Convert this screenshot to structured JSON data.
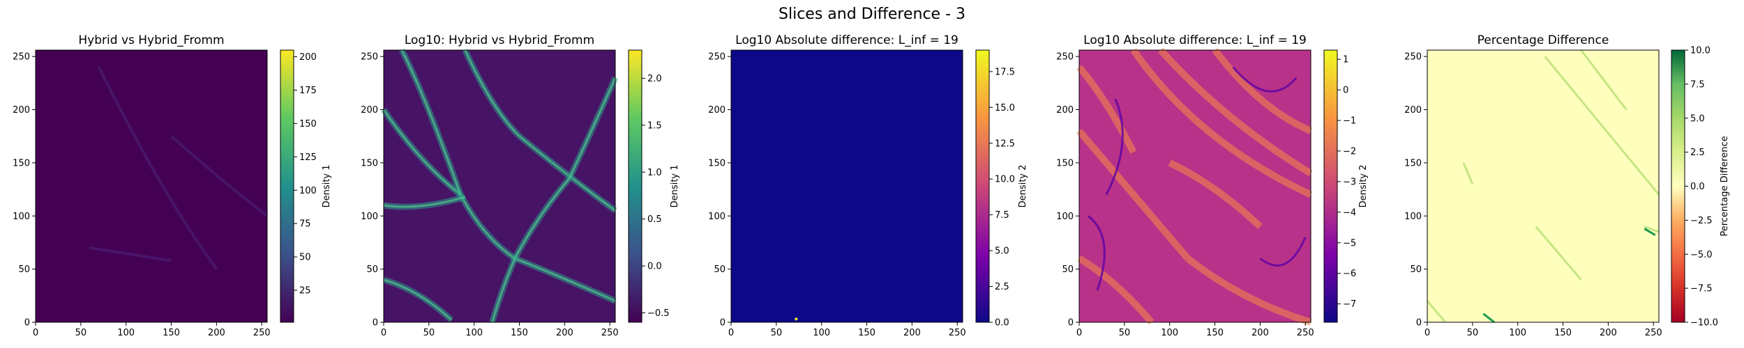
{
  "figure": {
    "suptitle": "Slices and Difference - 3"
  },
  "chart_data": [
    {
      "type": "heatmap",
      "title": "Hybrid vs Hybrid_Fromm",
      "xlabel": "",
      "ylabel": "",
      "xlim": [
        0,
        256
      ],
      "ylim": [
        0,
        256
      ],
      "xticks": [
        0,
        50,
        100,
        150,
        200,
        250
      ],
      "yticks": [
        0,
        50,
        100,
        150,
        200,
        250
      ],
      "colormap": "viridis",
      "background": "#440154",
      "colorbar": {
        "label": "Density 1",
        "range": [
          1,
          205
        ],
        "ticks": [
          25,
          50,
          75,
          100,
          125,
          150,
          175,
          200
        ]
      }
    },
    {
      "type": "heatmap",
      "title": "Log10: Hybrid vs Hybrid_Fromm",
      "xlabel": "",
      "ylabel": "",
      "xlim": [
        0,
        256
      ],
      "ylim": [
        0,
        256
      ],
      "xticks": [
        0,
        50,
        100,
        150,
        200,
        250
      ],
      "yticks": [
        0,
        50,
        100,
        150,
        200,
        250
      ],
      "colormap": "viridis",
      "background": "#471365",
      "colorbar": {
        "label": "Density 1",
        "range": [
          -0.6,
          2.3
        ],
        "ticks": [
          -0.5,
          0.0,
          0.5,
          1.0,
          1.5,
          2.0
        ]
      }
    },
    {
      "type": "heatmap",
      "title": "Log10 Absolute difference: L_inf = 19",
      "xlabel": "",
      "ylabel": "",
      "xlim": [
        0,
        256
      ],
      "ylim": [
        0,
        256
      ],
      "xticks": [
        0,
        50,
        100,
        150,
        200,
        250
      ],
      "yticks": [
        0,
        50,
        100,
        150,
        200,
        250
      ],
      "colormap": "plasma",
      "background": "#0d0887",
      "colorbar": {
        "label": "Density 2",
        "range": [
          0,
          19
        ],
        "ticks": [
          0.0,
          2.5,
          5.0,
          7.5,
          10.0,
          12.5,
          15.0,
          17.5
        ]
      }
    },
    {
      "type": "heatmap",
      "title": "Log10 Absolute difference: L_inf = 19",
      "xlabel": "",
      "ylabel": "",
      "xlim": [
        0,
        256
      ],
      "ylim": [
        0,
        256
      ],
      "xticks": [
        0,
        50,
        100,
        150,
        200,
        250
      ],
      "yticks": [
        0,
        50,
        100,
        150,
        200,
        250
      ],
      "colormap": "plasma",
      "background": "#b83289",
      "colorbar": {
        "label": "Density 2",
        "range": [
          -7.6,
          1.3
        ],
        "ticks": [
          -7,
          -6,
          -5,
          -4,
          -3,
          -2,
          -1,
          0,
          1
        ]
      }
    },
    {
      "type": "heatmap",
      "title": "Percentage Difference",
      "xlabel": "",
      "ylabel": "",
      "xlim": [
        0,
        256
      ],
      "ylim": [
        0,
        256
      ],
      "xticks": [
        0,
        50,
        100,
        150,
        200,
        250
      ],
      "yticks": [
        0,
        50,
        100,
        150,
        200,
        250
      ],
      "colormap": "RdYlGn",
      "background": "#fefebd",
      "colorbar": {
        "label": "Percentage Difference",
        "range": [
          -10,
          10
        ],
        "ticks": [
          -10.0,
          -7.5,
          -5.0,
          -2.5,
          0.0,
          2.5,
          5.0,
          7.5,
          10.0
        ]
      }
    }
  ]
}
